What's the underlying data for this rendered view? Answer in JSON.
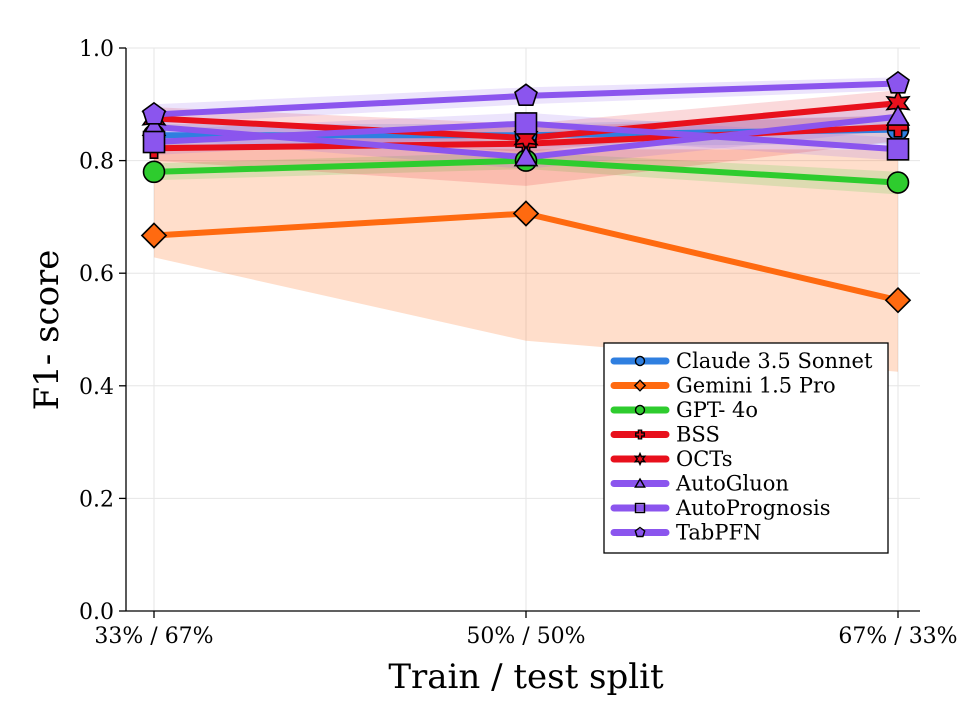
{
  "chart_data": {
    "type": "line",
    "title": "",
    "xlabel": "Train / test split",
    "ylabel": "F1- score",
    "categories": [
      "33% / 67%",
      "50% / 50%",
      "67% / 33%"
    ],
    "ylim": [
      0.0,
      1.0
    ],
    "yticks": [
      "0.0",
      "0.2",
      "0.4",
      "0.6",
      "0.8",
      "1.0"
    ],
    "grid": true,
    "legend_position": "lower-right",
    "series": [
      {
        "name": "Claude 3.5 Sonnet",
        "color": "#2f7fe0",
        "marker": "circle",
        "values": [
          0.845,
          0.845,
          0.855
        ],
        "band_low": [
          0.825,
          0.825,
          0.83
        ],
        "band_high": [
          0.865,
          0.865,
          0.88
        ]
      },
      {
        "name": "Gemini 1.5 Pro",
        "color": "#ff6a10",
        "marker": "diamond",
        "values": [
          0.667,
          0.706,
          0.552
        ],
        "band_low": [
          0.628,
          0.48,
          0.425
        ],
        "band_high": [
          0.83,
          0.82,
          0.82
        ]
      },
      {
        "name": "GPT- 4o",
        "color": "#2ecc2e",
        "marker": "circle",
        "values": [
          0.78,
          0.8,
          0.761
        ],
        "band_low": [
          0.765,
          0.785,
          0.74
        ],
        "band_high": [
          0.795,
          0.815,
          0.78
        ]
      },
      {
        "name": "BSS",
        "color": "#e8101c",
        "marker": "plus",
        "values": [
          0.822,
          0.83,
          0.86
        ],
        "band_low": [
          0.8,
          0.755,
          0.835
        ],
        "band_high": [
          0.845,
          0.86,
          0.88
        ]
      },
      {
        "name": "OCTs",
        "color": "#e8101c",
        "marker": "star",
        "values": [
          0.875,
          0.84,
          0.902
        ],
        "band_low": [
          0.855,
          0.815,
          0.88
        ],
        "band_high": [
          0.895,
          0.865,
          0.925
        ]
      },
      {
        "name": "AutoGluon",
        "color": "#8b55ee",
        "marker": "triangle",
        "values": [
          0.86,
          0.806,
          0.878
        ],
        "band_low": [
          0.84,
          0.785,
          0.855
        ],
        "band_high": [
          0.88,
          0.83,
          0.9
        ]
      },
      {
        "name": "AutoPrognosis",
        "color": "#8b55ee",
        "marker": "square",
        "values": [
          0.833,
          0.866,
          0.82
        ],
        "band_low": [
          0.81,
          0.845,
          0.8
        ],
        "band_high": [
          0.855,
          0.885,
          0.84
        ]
      },
      {
        "name": "TabPFN",
        "color": "#8b55ee",
        "marker": "pentagon",
        "values": [
          0.882,
          0.915,
          0.937
        ],
        "band_low": [
          0.865,
          0.9,
          0.925
        ],
        "band_high": [
          0.9,
          0.93,
          0.948
        ]
      }
    ]
  }
}
